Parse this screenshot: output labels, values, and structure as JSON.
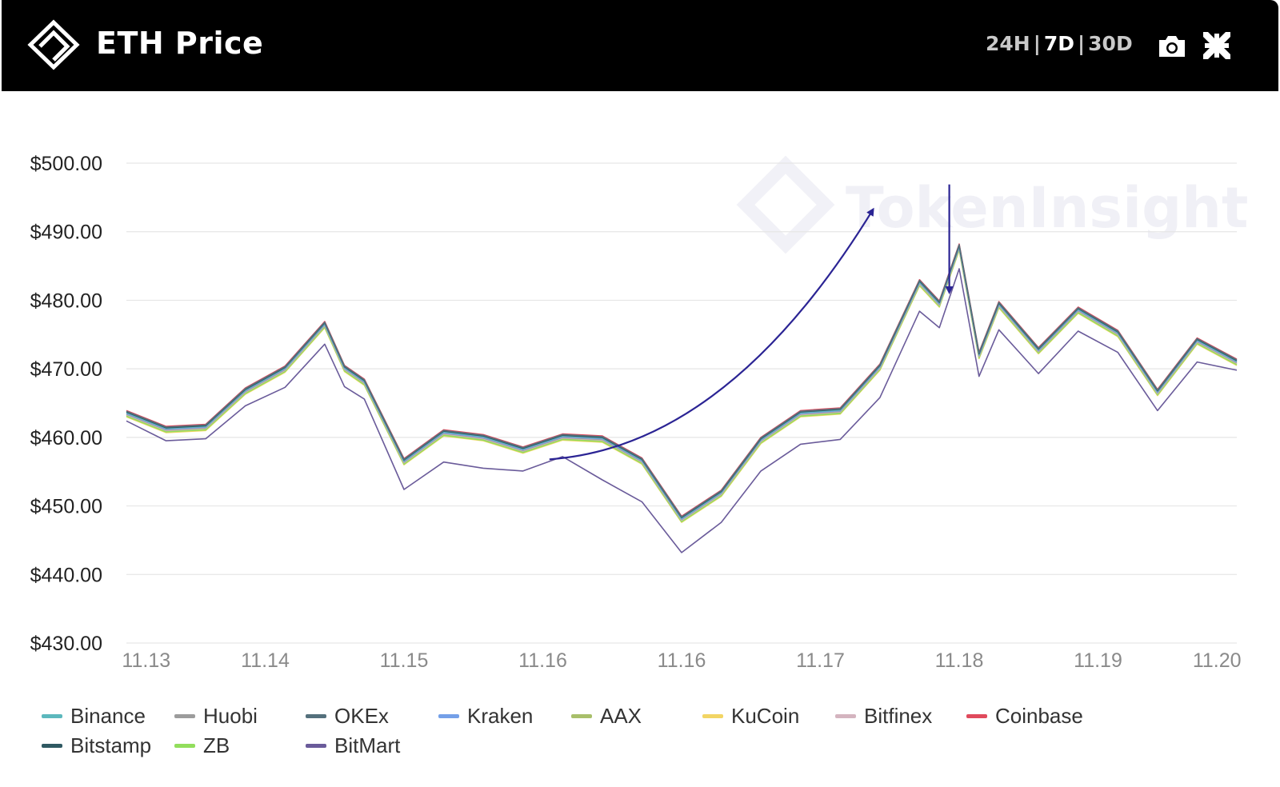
{
  "header": {
    "title": "ETH Price",
    "ranges": [
      "24H",
      "7D",
      "30D"
    ],
    "active_range": "7D",
    "separator": "|",
    "camera_icon": "camera-icon",
    "shrink_icon": "collapse-arrows-icon",
    "logo_icon": "tokeninsight-logo-icon"
  },
  "watermark": "TokenInsight",
  "annotations": [
    {
      "type": "curved-arrow",
      "color": "#2b2494",
      "from": {
        "x": 64.0,
        "y": 456.8
      },
      "to": {
        "x": 113.0,
        "y": 493.3
      }
    },
    {
      "type": "down-arrow",
      "color": "#2b2494",
      "from": {
        "x": 124.5,
        "y": 496.9
      },
      "to": {
        "x": 124.5,
        "y": 481.1
      }
    }
  ],
  "chart_data": {
    "type": "line",
    "title": "ETH Price",
    "xlabel": "",
    "ylabel": "",
    "ylim": [
      430,
      500
    ],
    "xlim": [
      0,
      168
    ],
    "y_ticks": [
      "$430.00",
      "$440.00",
      "$450.00",
      "$460.00",
      "$470.00",
      "$480.00",
      "$490.00",
      "$500.00"
    ],
    "x_ticks": [
      {
        "x": 3,
        "label": "11.13"
      },
      {
        "x": 21,
        "label": "11.14"
      },
      {
        "x": 42,
        "label": "11.15"
      },
      {
        "x": 63,
        "label": "11.16"
      },
      {
        "x": 84,
        "label": "11.16"
      },
      {
        "x": 105,
        "label": "11.17"
      },
      {
        "x": 126,
        "label": "11.18"
      },
      {
        "x": 147,
        "label": "11.19"
      },
      {
        "x": 165,
        "label": "11.20"
      }
    ],
    "grid": true,
    "legend_position": "bottom",
    "x_hours": [
      0,
      6,
      12,
      18,
      24,
      30,
      33,
      36,
      42,
      48,
      54,
      60,
      66,
      72,
      78,
      84,
      90,
      96,
      102,
      108,
      114,
      120,
      123,
      126,
      129,
      132,
      138,
      144,
      150,
      156,
      162,
      168
    ],
    "series": [
      {
        "name": "Binance",
        "color": "#5cb8bd",
        "values": [
          463.6,
          461.3,
          461.6,
          466.9,
          470.1,
          476.6,
          470.2,
          468.2,
          456.6,
          460.8,
          460.1,
          458.3,
          460.2,
          459.9,
          456.7,
          448.2,
          452.0,
          459.7,
          463.6,
          464.0,
          470.4,
          482.7,
          479.6,
          487.9,
          472.1,
          479.5,
          472.8,
          478.7,
          475.3,
          466.7,
          474.2,
          471.1
        ]
      },
      {
        "name": "Huobi",
        "color": "#9c9c9c",
        "values": [
          463.4,
          461.1,
          461.4,
          466.7,
          469.9,
          476.4,
          470.0,
          468.0,
          456.4,
          460.6,
          459.9,
          458.1,
          460.0,
          459.7,
          456.5,
          448.0,
          451.8,
          459.5,
          463.4,
          463.8,
          470.2,
          482.5,
          479.4,
          487.7,
          471.9,
          479.3,
          472.6,
          478.5,
          475.1,
          466.5,
          474.0,
          470.9
        ]
      },
      {
        "name": "OKEx",
        "color": "#54707c",
        "values": [
          463.8,
          461.5,
          461.8,
          467.1,
          470.3,
          476.8,
          470.4,
          468.4,
          456.8,
          461.0,
          460.3,
          458.5,
          460.4,
          460.1,
          456.9,
          448.4,
          452.2,
          459.9,
          463.8,
          464.2,
          470.6,
          482.9,
          479.8,
          488.1,
          472.3,
          479.7,
          473.0,
          478.9,
          475.5,
          466.9,
          474.4,
          471.3
        ]
      },
      {
        "name": "Kraken",
        "color": "#74a0e8",
        "values": [
          463.5,
          461.2,
          461.5,
          466.8,
          470.0,
          476.5,
          470.1,
          468.1,
          456.5,
          460.7,
          460.0,
          458.2,
          460.1,
          459.8,
          456.6,
          448.1,
          451.9,
          459.6,
          463.5,
          463.9,
          470.3,
          482.6,
          479.5,
          487.8,
          472.0,
          479.4,
          472.7,
          478.6,
          475.2,
          466.6,
          474.1,
          471.0
        ]
      },
      {
        "name": "AAX",
        "color": "#a8bf6a",
        "values": [
          463.2,
          460.9,
          461.2,
          466.5,
          469.7,
          476.2,
          469.8,
          467.8,
          456.2,
          460.4,
          459.7,
          457.9,
          459.8,
          459.5,
          456.3,
          447.8,
          451.6,
          459.3,
          463.2,
          463.6,
          470.0,
          482.3,
          479.2,
          487.5,
          471.7,
          479.1,
          472.4,
          478.3,
          474.9,
          466.3,
          473.8,
          470.7
        ]
      },
      {
        "name": "KuCoin",
        "color": "#f2d564",
        "values": [
          463.0,
          460.7,
          461.0,
          466.3,
          469.5,
          476.0,
          469.6,
          467.6,
          456.0,
          460.2,
          459.5,
          457.7,
          459.6,
          459.3,
          456.1,
          447.6,
          451.4,
          459.1,
          463.0,
          463.4,
          469.8,
          482.1,
          479.0,
          487.3,
          471.5,
          478.9,
          472.2,
          478.1,
          474.7,
          466.1,
          473.6,
          470.5
        ]
      },
      {
        "name": "Bitfinex",
        "color": "#d4b4bf",
        "values": [
          463.3,
          461.0,
          461.3,
          466.6,
          469.8,
          476.3,
          469.9,
          467.9,
          456.3,
          460.5,
          459.8,
          458.0,
          459.9,
          459.6,
          456.4,
          447.9,
          451.7,
          459.4,
          463.3,
          463.7,
          470.1,
          482.4,
          479.3,
          487.6,
          471.8,
          479.2,
          472.5,
          478.4,
          475.0,
          466.4,
          473.9,
          470.8
        ]
      },
      {
        "name": "Coinbase",
        "color": "#e04a5c",
        "values": [
          463.9,
          461.6,
          461.9,
          467.2,
          470.4,
          476.9,
          470.5,
          468.5,
          456.9,
          461.1,
          460.4,
          458.6,
          460.5,
          460.2,
          457.0,
          448.5,
          452.3,
          460.0,
          463.9,
          464.3,
          470.7,
          483.0,
          479.9,
          488.2,
          472.4,
          479.8,
          473.1,
          479.0,
          475.6,
          467.0,
          474.5,
          471.4
        ]
      },
      {
        "name": "Bitstamp",
        "color": "#2f5962",
        "values": [
          463.7,
          461.4,
          461.7,
          467.0,
          470.2,
          476.7,
          470.3,
          468.3,
          456.7,
          460.9,
          460.2,
          458.4,
          460.3,
          460.0,
          456.8,
          448.3,
          452.1,
          459.8,
          463.7,
          464.1,
          470.5,
          482.8,
          479.7,
          488.0,
          472.2,
          479.6,
          472.9,
          478.8,
          475.4,
          466.8,
          474.3,
          471.2
        ]
      },
      {
        "name": "ZB",
        "color": "#92de5c",
        "values": [
          463.1,
          460.8,
          461.1,
          466.4,
          469.6,
          476.1,
          469.7,
          467.7,
          456.1,
          460.3,
          459.6,
          457.8,
          459.7,
          459.4,
          456.2,
          447.7,
          451.5,
          459.2,
          463.1,
          463.5,
          469.9,
          482.2,
          479.1,
          487.4,
          471.6,
          479.0,
          472.3,
          478.2,
          474.8,
          466.2,
          473.7,
          470.6
        ]
      },
      {
        "name": "BitMart",
        "color": "#6a5b9a",
        "values": [
          462.4,
          459.5,
          459.8,
          464.6,
          467.3,
          473.6,
          467.4,
          465.6,
          452.4,
          456.4,
          455.5,
          455.1,
          457.2,
          453.8,
          450.6,
          443.2,
          447.6,
          455.1,
          459.0,
          459.7,
          465.8,
          478.4,
          476.0,
          484.6,
          468.9,
          475.7,
          469.3,
          475.5,
          472.4,
          463.9,
          471.0,
          469.8
        ]
      }
    ]
  }
}
